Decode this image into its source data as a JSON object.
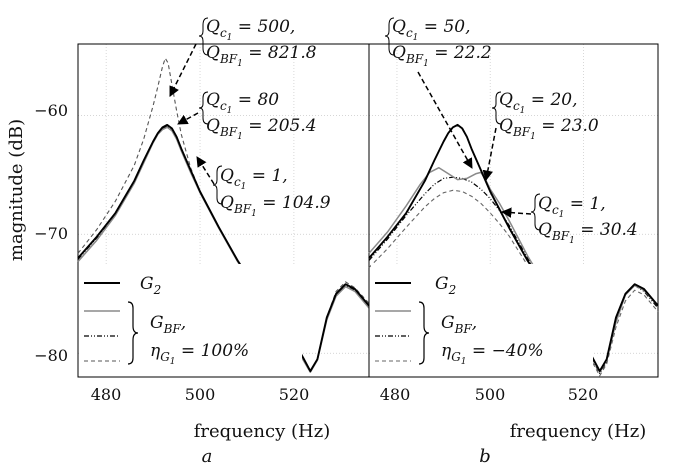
{
  "chart_data": [
    {
      "type": "line",
      "panel": "a",
      "xlabel": "frequency (Hz)",
      "ylabel": "magnitude (dB)",
      "xlim": [
        474,
        536
      ],
      "ylim": [
        -82,
        -54
      ],
      "xticks": [
        480,
        500,
        520
      ],
      "yticks": [
        -60,
        -70,
        -80
      ],
      "grid": true,
      "legend": {
        "placement": "bottom-left",
        "entries": [
          "G₂",
          "G_BF,",
          "η_G₁ = 100%"
        ]
      },
      "annotations": [
        {
          "text_l1": "Q_c₁ = 500,",
          "text_l2": "Q_BF₁ = 821.8",
          "points_to": [
            493.5,
            -58.5
          ]
        },
        {
          "text_l1": "Q_c₁ = 80",
          "text_l2": "Q_BF₁ = 205.4",
          "points_to": [
            495.5,
            -61.3
          ]
        },
        {
          "text_l1": "Q_c₁ = 1,",
          "text_l2": "Q_BF₁ = 104.9",
          "points_to": [
            498,
            -64
          ]
        }
      ],
      "series": [
        {
          "name": "G₂",
          "style": "solid",
          "color": "#000000",
          "width": 1.9,
          "x": [
            474,
            478,
            482,
            486,
            488,
            490,
            491,
            492,
            493,
            494,
            495,
            496,
            498,
            500,
            504,
            508,
            512,
            516,
            520,
            522,
            523.5,
            525,
            527,
            529,
            531,
            533,
            536
          ],
          "y": [
            -72,
            -70.2,
            -68.2,
            -65.5,
            -63.8,
            -62.2,
            -61.5,
            -61.0,
            -60.8,
            -61.1,
            -61.8,
            -62.8,
            -64.6,
            -66.4,
            -69.4,
            -72.2,
            -74.6,
            -76.6,
            -79.0,
            -80.4,
            -81.5,
            -80.5,
            -77.0,
            -75.0,
            -74.2,
            -74.6,
            -76.0
          ]
        },
        {
          "name": "Q_c₁ = 500",
          "style": "dashed",
          "color": "#555555",
          "width": 1.1,
          "x": [
            474,
            478,
            482,
            486,
            488,
            490,
            491,
            492,
            492.6,
            493.2,
            494,
            495,
            496,
            498,
            500,
            504,
            508,
            512,
            516,
            520,
            522,
            523.5,
            525,
            527,
            529,
            531,
            533,
            536
          ],
          "y": [
            -71.6,
            -69.6,
            -67.2,
            -64.2,
            -62.0,
            -59.2,
            -57.6,
            -55.9,
            -55.2,
            -55.6,
            -57.4,
            -59.6,
            -61.6,
            -64.4,
            -66.4,
            -69.4,
            -72.2,
            -74.6,
            -76.6,
            -79.0,
            -80.4,
            -81.6,
            -80.5,
            -77.0,
            -74.8,
            -74.0,
            -74.5,
            -75.8
          ]
        },
        {
          "name": "Q_c₁ = 80",
          "style": "solid",
          "color": "#8a8a8a",
          "width": 1.5,
          "x": [
            474,
            478,
            482,
            486,
            488,
            490,
            491,
            492,
            493,
            494,
            495,
            496,
            498,
            500,
            504,
            508,
            512,
            516,
            520,
            522,
            523.5,
            525,
            527,
            529,
            531,
            533,
            536
          ],
          "y": [
            -72.3,
            -70.5,
            -68.4,
            -65.7,
            -64.0,
            -62.3,
            -61.6,
            -61.2,
            -61.0,
            -61.3,
            -62.0,
            -63.0,
            -64.8,
            -66.5,
            -69.5,
            -72.3,
            -74.7,
            -76.7,
            -79.1,
            -80.6,
            -81.6,
            -80.6,
            -77.2,
            -75.2,
            -74.4,
            -74.8,
            -76.2
          ]
        },
        {
          "name": "Q_c₁ = 1",
          "style": "dashdot",
          "color": "#000000",
          "width": 1.2,
          "x": [
            474,
            478,
            482,
            486,
            488,
            490,
            491,
            492,
            493,
            494,
            495,
            496,
            498,
            500,
            504,
            508,
            512,
            516,
            520,
            522,
            523.5,
            525,
            527,
            529,
            531,
            533,
            536
          ],
          "y": [
            -72.1,
            -70.3,
            -68.3,
            -65.6,
            -63.9,
            -62.3,
            -61.6,
            -61.1,
            -60.9,
            -61.2,
            -61.9,
            -62.9,
            -64.7,
            -66.4,
            -69.4,
            -72.2,
            -74.6,
            -76.6,
            -79.0,
            -80.5,
            -81.5,
            -80.5,
            -77.1,
            -75.1,
            -74.3,
            -74.7,
            -76.1
          ]
        }
      ]
    },
    {
      "type": "line",
      "panel": "b",
      "xlabel": "frequency (Hz)",
      "ylabel": "",
      "xlim": [
        474,
        536
      ],
      "ylim": [
        -82,
        -54
      ],
      "xticks": [
        480,
        500,
        520
      ],
      "yticks": [
        -60,
        -70,
        -80
      ],
      "grid": true,
      "legend": {
        "placement": "bottom-left",
        "entries": [
          "G₂",
          "G_BF,",
          "η_G₁ = −40%"
        ]
      },
      "annotations": [
        {
          "text_l1": "Q_c₁ = 50,",
          "text_l2": "Q_BF₁ = 22.2",
          "points_to": [
            494.5,
            -65.2
          ]
        },
        {
          "text_l1": "Q_c₁ = 20,",
          "text_l2": "Q_BF₁ = 23.0",
          "points_to": [
            498.5,
            -65.6
          ]
        },
        {
          "text_l1": "Q_c₁ = 1,",
          "text_l2": "Q_BF₁ = 30.4",
          "points_to": [
            504,
            -68.3
          ]
        }
      ],
      "series": [
        {
          "name": "G₂",
          "style": "solid",
          "color": "#000000",
          "width": 1.9,
          "x": [
            474,
            478,
            482,
            486,
            488,
            490,
            491,
            492,
            493,
            494,
            495,
            496,
            498,
            500,
            504,
            508,
            512,
            516,
            520,
            522,
            523.5,
            525,
            527,
            529,
            531,
            533,
            536
          ],
          "y": [
            -72,
            -70.2,
            -68.2,
            -65.5,
            -63.8,
            -62.2,
            -61.5,
            -61.0,
            -60.8,
            -61.1,
            -61.8,
            -62.8,
            -64.6,
            -66.4,
            -69.4,
            -72.2,
            -74.6,
            -76.6,
            -79.0,
            -80.4,
            -81.5,
            -80.5,
            -77.0,
            -75.0,
            -74.2,
            -74.6,
            -76.0
          ]
        },
        {
          "name": "Q_c₁ = 50",
          "style": "solid",
          "color": "#8a8a8a",
          "width": 1.5,
          "x": [
            474,
            478,
            482,
            485,
            487,
            489,
            491,
            493,
            495,
            497,
            498,
            499,
            500,
            502,
            504,
            508,
            512,
            516,
            520,
            522,
            523.5,
            525,
            527,
            529,
            531,
            533,
            536
          ],
          "y": [
            -71.6,
            -69.8,
            -67.6,
            -65.8,
            -64.8,
            -64.4,
            -64.9,
            -65.4,
            -65.3,
            -64.9,
            -64.8,
            -65.4,
            -66.2,
            -67.4,
            -68.8,
            -71.8,
            -74.4,
            -76.5,
            -79.0,
            -80.5,
            -81.6,
            -80.6,
            -77.4,
            -75.1,
            -74.3,
            -74.7,
            -76.0
          ]
        },
        {
          "name": "Q_c₁ = 20",
          "style": "dashdot",
          "color": "#000000",
          "width": 1.2,
          "x": [
            474,
            478,
            482,
            486,
            488,
            490,
            492,
            494,
            496,
            498,
            500,
            502,
            504,
            508,
            512,
            516,
            520,
            522,
            523.5,
            525,
            527,
            529,
            531,
            533,
            536
          ],
          "y": [
            -72.2,
            -70.4,
            -68.4,
            -66.6,
            -65.8,
            -65.3,
            -65.2,
            -65.3,
            -65.6,
            -66.2,
            -67.0,
            -68.0,
            -69.2,
            -72.0,
            -74.6,
            -76.7,
            -79.1,
            -80.6,
            -81.7,
            -80.7,
            -77.2,
            -75.1,
            -74.3,
            -74.8,
            -76.2
          ]
        },
        {
          "name": "Q_c₁ = 1",
          "style": "dashed",
          "color": "#666666",
          "width": 1.1,
          "x": [
            474,
            478,
            482,
            486,
            488,
            490,
            492,
            494,
            496,
            498,
            500,
            502,
            504,
            508,
            512,
            516,
            520,
            522,
            523.5,
            525,
            527,
            529,
            531,
            533,
            536
          ],
          "y": [
            -72.8,
            -71.2,
            -69.4,
            -67.7,
            -67.0,
            -66.5,
            -66.3,
            -66.4,
            -66.8,
            -67.4,
            -68.2,
            -69.1,
            -70.1,
            -72.6,
            -75.0,
            -77.0,
            -79.4,
            -80.8,
            -81.9,
            -80.9,
            -77.8,
            -75.6,
            -74.7,
            -75.1,
            -76.5
          ]
        }
      ]
    }
  ],
  "labels": {
    "ylabel": "magnitude (dB)",
    "a": {
      "xlabel": "frequency (Hz)",
      "letter": "a",
      "ticks_x": [
        "480",
        "500",
        "520"
      ],
      "ticks_y": [
        "−60",
        "−70",
        "−80"
      ],
      "legend_g2": "G",
      "legend_g2_sub": "2",
      "legend_gbf": "G",
      "legend_gbf_sub": "BF",
      "legend_gbf_tail": ",",
      "legend_eta": "η",
      "legend_eta_sub": "G",
      "legend_eta_subsub": "1",
      "legend_eta_val": " = 100%",
      "ann1_q": "Q",
      "ann1_qsub": "c",
      "ann1_qsubsub": "1",
      "ann1_qval": " = 500,",
      "ann1_b": "Q",
      "ann1_bsub": "BF",
      "ann1_bsubsub": "1",
      "ann1_bval": " = 821.8",
      "ann2_q": "Q",
      "ann2_qsub": "c",
      "ann2_qsubsub": "1",
      "ann2_qval": " = 80",
      "ann2_b": "Q",
      "ann2_bsub": "BF",
      "ann2_bsubsub": "1",
      "ann2_bval": " = 205.4",
      "ann3_q": "Q",
      "ann3_qsub": "c",
      "ann3_qsubsub": "1",
      "ann3_qval": " = 1,",
      "ann3_b": "Q",
      "ann3_bsub": "BF",
      "ann3_bsubsub": "1",
      "ann3_bval": " = 104.9"
    },
    "b": {
      "xlabel": "frequency (Hz)",
      "letter": "b",
      "ticks_x": [
        "480",
        "500",
        "520"
      ],
      "legend_g2": "G",
      "legend_g2_sub": "2",
      "legend_gbf": "G",
      "legend_gbf_sub": "BF",
      "legend_gbf_tail": ",",
      "legend_eta": "η",
      "legend_eta_sub": "G",
      "legend_eta_subsub": "1",
      "legend_eta_val": " = −40%",
      "ann1_q": "Q",
      "ann1_qsub": "c",
      "ann1_qsubsub": "1",
      "ann1_qval": " = 50,",
      "ann1_b": "Q",
      "ann1_bsub": "BF",
      "ann1_bsubsub": "1",
      "ann1_bval": " = 22.2",
      "ann2_q": "Q",
      "ann2_qsub": "c",
      "ann2_qsubsub": "1",
      "ann2_qval": " = 20,",
      "ann2_b": "Q",
      "ann2_bsub": "BF",
      "ann2_bsubsub": "1",
      "ann2_bval": " = 23.0",
      "ann3_q": "Q",
      "ann3_qsub": "c",
      "ann3_qsubsub": "1",
      "ann3_qval": " = 1,",
      "ann3_b": "Q",
      "ann3_bsub": "BF",
      "ann3_bsubsub": "1",
      "ann3_bval": " = 30.4"
    }
  }
}
